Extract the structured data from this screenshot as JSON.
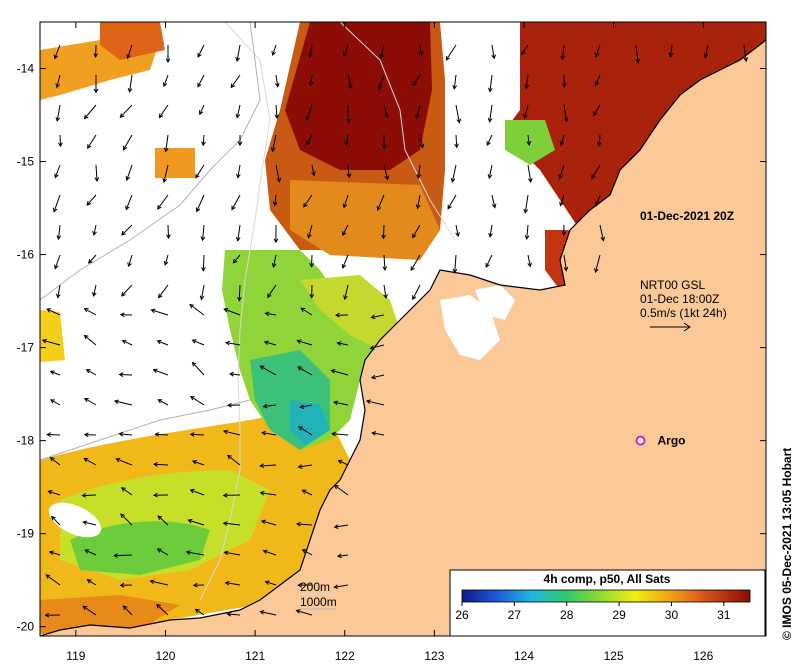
{
  "map": {
    "lon_ticks": [
      "119",
      "120",
      "121",
      "122",
      "123",
      "124",
      "125",
      "126"
    ],
    "lat_ticks": [
      "-14",
      "-15",
      "-16",
      "-17",
      "-18",
      "-19",
      "-20"
    ],
    "lon_range": [
      118.6,
      126.7
    ],
    "lat_range": [
      -20.1,
      -13.5
    ],
    "land_color": "#fbc898",
    "no_data_color": "#ffffff",
    "date_label": "01-Dec-2021 20Z",
    "current_legend": {
      "line1": "NRT00 GSL",
      "line2": "01-Dec 18:00Z",
      "line3": "0.5m/s (1kt 24h)"
    },
    "argo": {
      "label": "Argo",
      "lon": 125.3,
      "lat": -18.0,
      "color": "#cc22cc"
    },
    "isobath_labels": {
      "shallow": "200m",
      "deep": "1000m"
    },
    "colorbar": {
      "title": "4h comp, p50, All Sats",
      "tick_labels": [
        "26",
        "27",
        "28",
        "29",
        "30",
        "31"
      ],
      "min": 26,
      "max": 31.5
    },
    "credit": "IMOS 05-Dec-2021 13:05 Hobart"
  }
}
